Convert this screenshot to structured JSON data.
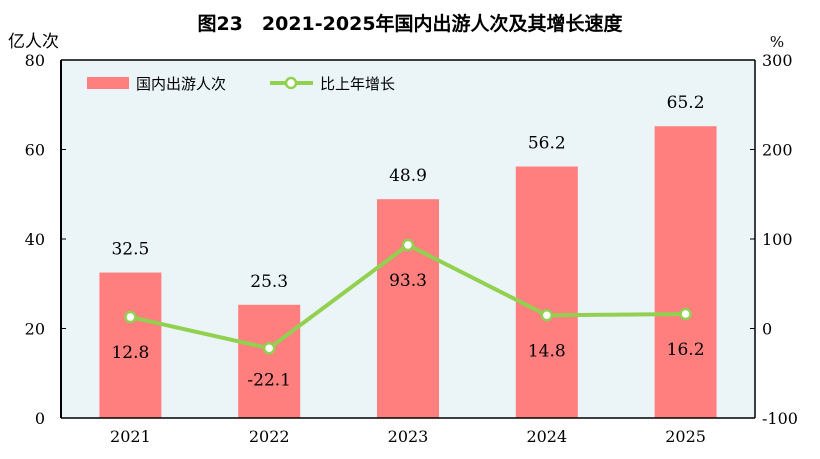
{
  "chart_data": {
    "type": "bar+line",
    "title": "图23　2021-2025年国内出游人次及其增长速度",
    "categories": [
      "2021",
      "2022",
      "2023",
      "2024",
      "2025"
    ],
    "series": [
      {
        "name": "国内出游人次",
        "type": "bar",
        "axis": "left",
        "values": [
          32.5,
          25.3,
          48.9,
          56.2,
          65.2
        ],
        "labels": [
          "32.5",
          "25.3",
          "48.9",
          "56.2",
          "65.2"
        ],
        "color": "#ff7f7f"
      },
      {
        "name": "比上年增长",
        "type": "line",
        "axis": "right",
        "values": [
          12.8,
          -22.1,
          93.3,
          14.8,
          16.2
        ],
        "labels": [
          "12.8",
          "-22.1",
          "93.3",
          "14.8",
          "16.2"
        ],
        "color": "#92d050"
      }
    ],
    "ylabel_left": "亿人次",
    "ylabel_right": "%",
    "ylim_left": [
      0,
      80
    ],
    "ylim_right": [
      -100,
      300
    ],
    "yticks_left": [
      "0",
      "20",
      "40",
      "60",
      "80"
    ],
    "yticks_right": [
      "-100",
      "0",
      "100",
      "200",
      "300"
    ],
    "legend": "top-left",
    "grid": false,
    "background": "#ebf5f8"
  }
}
